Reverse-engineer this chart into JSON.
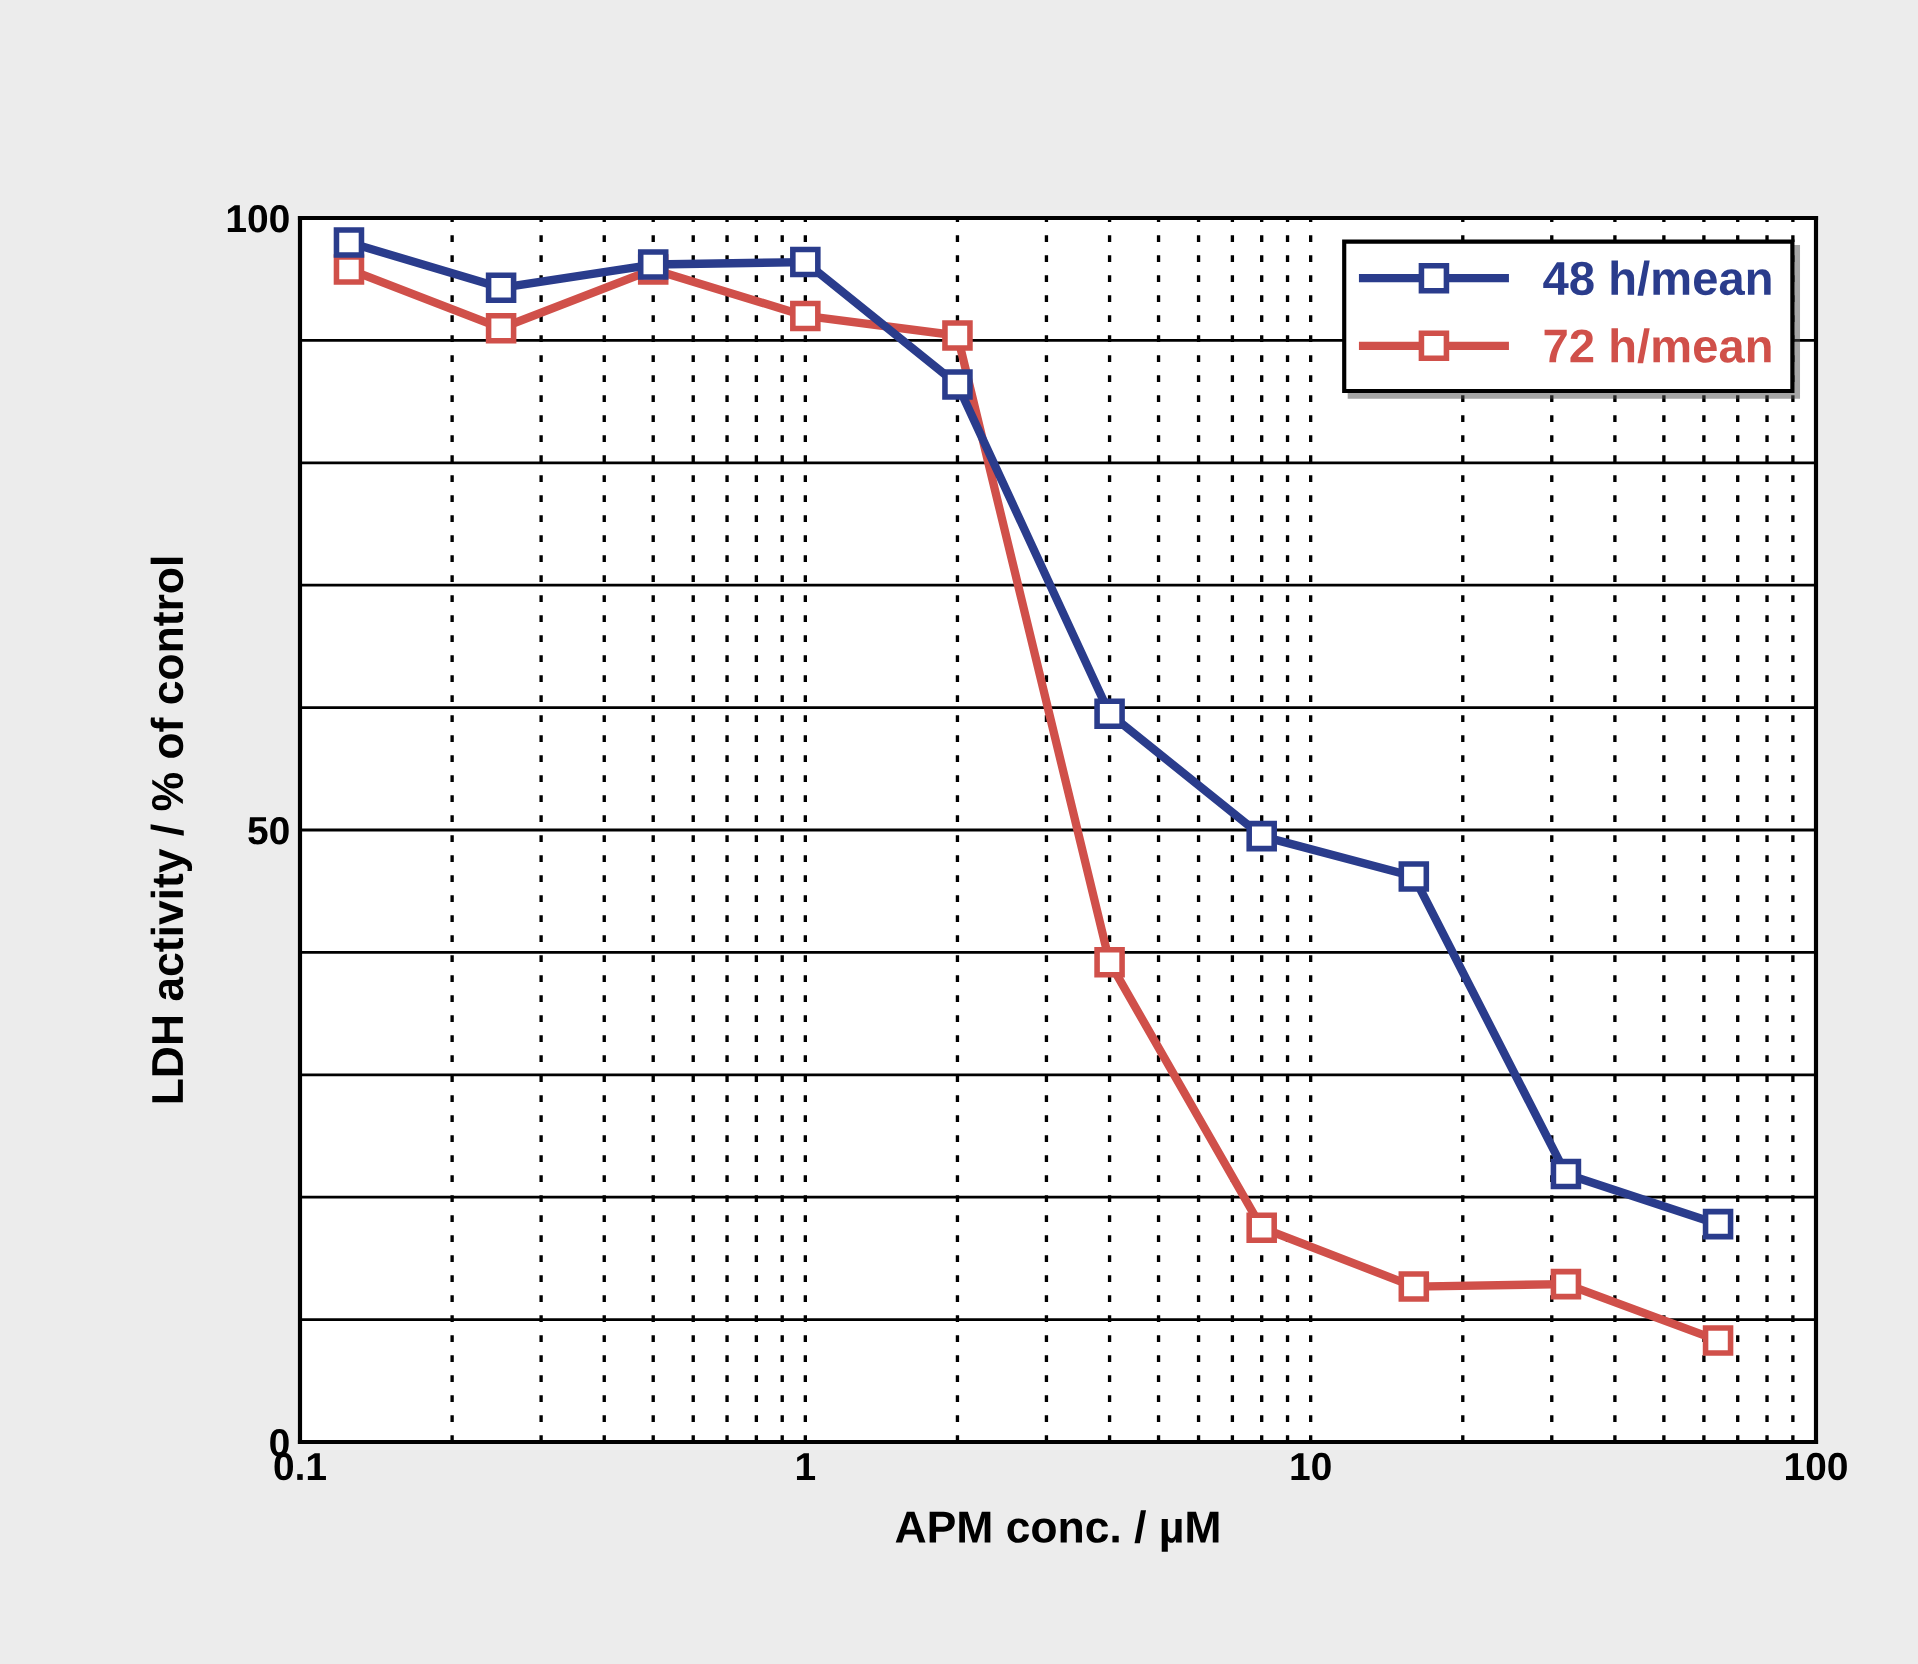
{
  "chart_data": {
    "type": "line",
    "xlabel": "APM conc. / µM",
    "ylabel": "LDH activity / % of control",
    "x": [
      0.125,
      0.25,
      0.5,
      1,
      2,
      4,
      8,
      16,
      32,
      64
    ],
    "series": [
      {
        "name": "48 h/mean",
        "color": "#2a3c8c",
        "values": [
          98.0,
          94.3,
          96.2,
          96.4,
          86.4,
          59.5,
          49.5,
          46.2,
          21.9,
          17.8
        ]
      },
      {
        "name": "72 h/mean",
        "color": "#d0504a",
        "values": [
          95.8,
          91.0,
          95.8,
          92.0,
          90.4,
          39.2,
          17.5,
          12.7,
          12.9,
          8.3
        ]
      }
    ],
    "log": "x",
    "xlim": [
      0.1,
      100
    ],
    "xticks": [
      0.1,
      1,
      10,
      100
    ],
    "ylim": [
      0,
      100
    ],
    "yticks": [
      0,
      {
        "value": 10,
        "label": null
      },
      {
        "value": 20,
        "label": null
      },
      {
        "value": 30,
        "label": null
      },
      {
        "value": 40,
        "label": null
      },
      50,
      {
        "value": 60,
        "label": null
      },
      {
        "value": 70,
        "label": null
      },
      {
        "value": 80,
        "label": null
      },
      {
        "value": 90,
        "label": null
      },
      100
    ],
    "grid": true,
    "legend": "top right",
    "marker": "square",
    "line_style": "solid"
  }
}
